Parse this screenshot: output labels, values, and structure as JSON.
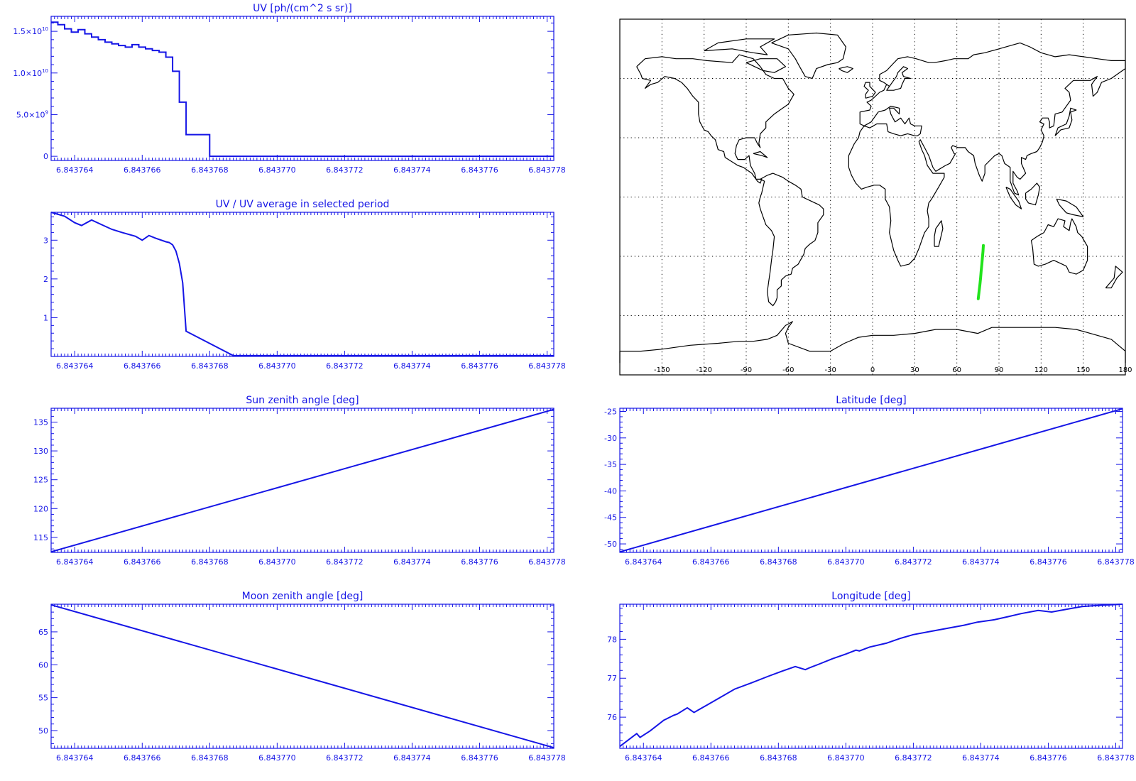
{
  "colors": {
    "axis": "#1515e6",
    "series": "#1515e6",
    "map": "#000000",
    "track": "#22e31c",
    "grid": "#000000"
  },
  "x_tick_labels": [
    "6.843764",
    "6.843766",
    "6.843768",
    "6.843770",
    "6.843772",
    "6.843774",
    "6.843776",
    "6.843778"
  ],
  "chart_data": [
    {
      "id": "uv",
      "type": "line",
      "step": true,
      "title": "UV [ph/(cm^2 s sr)]",
      "xlim": [
        6.8437633,
        6.8437782
      ],
      "ylim": [
        -500000000.0,
        16800000000.0
      ],
      "y_ticks": [
        {
          "v": 0,
          "base": "0",
          "exp": ""
        },
        {
          "v": 5000000000.0,
          "base": "5.0×10",
          "exp": "9"
        },
        {
          "v": 10000000000.0,
          "base": "1.0×10",
          "exp": "10"
        },
        {
          "v": 15000000000.0,
          "base": "1.5×10",
          "exp": "10"
        }
      ],
      "x": [
        6.8437633,
        6.8437635,
        6.8437637,
        6.8437639,
        6.8437641,
        6.8437643,
        6.8437645,
        6.8437647,
        6.8437649,
        6.8437651,
        6.8437653,
        6.8437655,
        6.8437657,
        6.8437659,
        6.8437661,
        6.8437663,
        6.8437665,
        6.8437667,
        6.8437669,
        6.8437671,
        6.8437673,
        6.8437675,
        6.843768,
        6.8437782
      ],
      "y": [
        16100000000.0,
        15800000000.0,
        15300000000.0,
        14900000000.0,
        15200000000.0,
        14700000000.0,
        14300000000.0,
        14000000000.0,
        13700000000.0,
        13500000000.0,
        13300000000.0,
        13100000000.0,
        13400000000.0,
        13100000000.0,
        12900000000.0,
        12700000000.0,
        12500000000.0,
        11900000000.0,
        10200000000.0,
        6500000000.0,
        2600000000.0,
        2600000000.0,
        0,
        0
      ]
    },
    {
      "id": "uvratio",
      "type": "line",
      "title": "UV / UV average in selected period",
      "xlim": [
        6.8437633,
        6.8437782
      ],
      "ylim": [
        0,
        3.72
      ],
      "y_ticks": [
        {
          "v": 1,
          "base": "1",
          "exp": ""
        },
        {
          "v": 2,
          "base": "2",
          "exp": ""
        },
        {
          "v": 3,
          "base": "3",
          "exp": ""
        }
      ],
      "x": [
        6.8437633,
        6.8437637,
        6.843764,
        6.8437642,
        6.8437645,
        6.8437648,
        6.8437651,
        6.8437654,
        6.8437658,
        6.843766,
        6.8437662,
        6.8437664,
        6.8437667,
        6.8437668,
        6.8437669,
        6.843767,
        6.8437671,
        6.8437672,
        6.8437673,
        6.8437687,
        6.8437782
      ],
      "y": [
        3.72,
        3.62,
        3.45,
        3.38,
        3.52,
        3.4,
        3.28,
        3.2,
        3.1,
        3.0,
        3.12,
        3.05,
        2.96,
        2.94,
        2.88,
        2.72,
        2.4,
        1.9,
        0.65,
        0.02,
        0.02
      ]
    },
    {
      "id": "sza",
      "type": "line",
      "title": "Sun zenith angle [deg]",
      "xlim": [
        6.8437633,
        6.8437782
      ],
      "ylim": [
        112.4,
        137.4
      ],
      "y_ticks": [
        {
          "v": 115,
          "base": "115",
          "exp": ""
        },
        {
          "v": 120,
          "base": "120",
          "exp": ""
        },
        {
          "v": 125,
          "base": "125",
          "exp": ""
        },
        {
          "v": 130,
          "base": "130",
          "exp": ""
        },
        {
          "v": 135,
          "base": "135",
          "exp": ""
        }
      ],
      "x": [
        6.8437633,
        6.8437782
      ],
      "y": [
        112.5,
        137.2
      ]
    },
    {
      "id": "lat",
      "type": "line",
      "title": "Latitude [deg]",
      "xlim": [
        6.8437633,
        6.8437782
      ],
      "ylim": [
        -51.6,
        -24.4
      ],
      "y_ticks": [
        {
          "v": -50,
          "base": "-50",
          "exp": ""
        },
        {
          "v": -45,
          "base": "-45",
          "exp": ""
        },
        {
          "v": -40,
          "base": "-40",
          "exp": ""
        },
        {
          "v": -35,
          "base": "-35",
          "exp": ""
        },
        {
          "v": -30,
          "base": "-30",
          "exp": ""
        },
        {
          "v": -25,
          "base": "-25",
          "exp": ""
        }
      ],
      "x": [
        6.8437633,
        6.8437782
      ],
      "y": [
        -51.5,
        -24.5
      ]
    },
    {
      "id": "mza",
      "type": "line",
      "title": "Moon zenith angle [deg]",
      "xlim": [
        6.8437633,
        6.8437782
      ],
      "ylim": [
        47.3,
        69.2
      ],
      "y_ticks": [
        {
          "v": 50,
          "base": "50",
          "exp": ""
        },
        {
          "v": 55,
          "base": "55",
          "exp": ""
        },
        {
          "v": 60,
          "base": "60",
          "exp": ""
        },
        {
          "v": 65,
          "base": "65",
          "exp": ""
        }
      ],
      "x": [
        6.8437633,
        6.8437782
      ],
      "y": [
        69.1,
        47.4
      ]
    },
    {
      "id": "lon",
      "type": "line",
      "title": "Longitude [deg]",
      "xlim": [
        6.8437633,
        6.8437782
      ],
      "ylim": [
        75.2,
        78.9
      ],
      "y_ticks": [
        {
          "v": 76,
          "base": "76",
          "exp": ""
        },
        {
          "v": 77,
          "base": "77",
          "exp": ""
        },
        {
          "v": 78,
          "base": "78",
          "exp": ""
        }
      ],
      "x": [
        6.8437633,
        6.8437638,
        6.8437639,
        6.8437642,
        6.8437646,
        6.8437649,
        6.843765,
        6.8437653,
        6.8437655,
        6.8437657,
        6.8437659,
        6.8437663,
        6.8437667,
        6.8437672,
        6.8437677,
        6.8437681,
        6.8437685,
        6.8437688,
        6.8437689,
        6.8437692,
        6.8437696,
        6.84377,
        6.8437703,
        6.8437704,
        6.8437707,
        6.8437712,
        6.8437716,
        6.843772,
        6.8437725,
        6.843773,
        6.8437735,
        6.8437739,
        6.8437744,
        6.8437748,
        6.8437752,
        6.8437757,
        6.8437761,
        6.8437766,
        6.843777,
        6.8437773,
        6.8437777,
        6.8437782
      ],
      "y": [
        75.25,
        75.58,
        75.48,
        75.65,
        75.92,
        76.05,
        76.08,
        76.24,
        76.12,
        76.22,
        76.32,
        76.52,
        76.72,
        76.88,
        77.05,
        77.18,
        77.3,
        77.22,
        77.26,
        77.36,
        77.5,
        77.62,
        77.72,
        77.7,
        77.8,
        77.9,
        78.02,
        78.12,
        78.2,
        78.28,
        78.36,
        78.44,
        78.5,
        78.58,
        78.66,
        78.74,
        78.7,
        78.78,
        78.84,
        78.86,
        78.88,
        78.9
      ]
    },
    {
      "id": "map",
      "type": "scatter",
      "title": "",
      "xlim": [
        -180,
        180
      ],
      "ylim": [
        -90,
        90
      ],
      "grid": true,
      "x_ticks": [
        -150,
        -120,
        -90,
        -60,
        -30,
        0,
        30,
        60,
        90,
        120,
        150,
        180
      ],
      "x_tick_labels": [
        "-150",
        "-120",
        "-90",
        "-60",
        "-30",
        "0",
        "30",
        "60",
        "90",
        "120",
        "150",
        "180"
      ],
      "track_lon": [
        75.25,
        75.8,
        76.4,
        76.9,
        77.3,
        77.8,
        78.2,
        78.6,
        78.9
      ],
      "track_lat": [
        -51.5,
        -48,
        -44.5,
        -41,
        -37.5,
        -34,
        -30.5,
        -27.5,
        -24.5
      ]
    }
  ]
}
